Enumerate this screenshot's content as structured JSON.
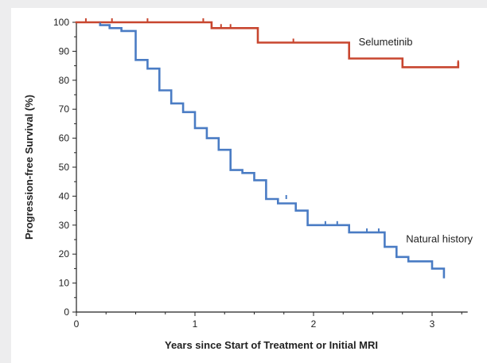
{
  "chart_data": {
    "type": "line",
    "title": "",
    "xlabel": "Years since Start of Treatment or Initial MRI",
    "ylabel": "Progression-free Survival (%)",
    "xlim": [
      0,
      3.3
    ],
    "ylim": [
      0,
      100
    ],
    "xticks": [
      0,
      1,
      2,
      3
    ],
    "yticks": [
      0,
      10,
      20,
      30,
      40,
      50,
      60,
      70,
      80,
      90,
      100
    ],
    "grid": false,
    "legend": "none",
    "series": [
      {
        "name": "Selumetinib",
        "color": "#c8462f",
        "step_points": [
          [
            0,
            100
          ],
          [
            1.14,
            100
          ],
          [
            1.14,
            98
          ],
          [
            1.53,
            98
          ],
          [
            1.53,
            93
          ],
          [
            2.3,
            93
          ],
          [
            2.3,
            87.5
          ],
          [
            2.75,
            87.5
          ],
          [
            2.75,
            84.5
          ],
          [
            3.22,
            84.5
          ],
          [
            3.22,
            86
          ]
        ],
        "censor_marks": [
          [
            0.08,
            100
          ],
          [
            0.3,
            100
          ],
          [
            0.6,
            100
          ],
          [
            1.07,
            100
          ],
          [
            1.22,
            98
          ],
          [
            1.3,
            98
          ],
          [
            1.83,
            93
          ],
          [
            3.22,
            85.5
          ]
        ]
      },
      {
        "name": "Natural history",
        "color": "#4a7cc4",
        "step_points": [
          [
            0.2,
            99.5
          ],
          [
            0.2,
            99
          ],
          [
            0.28,
            99
          ],
          [
            0.28,
            98
          ],
          [
            0.38,
            98
          ],
          [
            0.38,
            97
          ],
          [
            0.5,
            97
          ],
          [
            0.5,
            87
          ],
          [
            0.6,
            87
          ],
          [
            0.6,
            84
          ],
          [
            0.7,
            84
          ],
          [
            0.7,
            76.5
          ],
          [
            0.8,
            76.5
          ],
          [
            0.8,
            72
          ],
          [
            0.9,
            72
          ],
          [
            0.9,
            69
          ],
          [
            1.0,
            69
          ],
          [
            1.0,
            63.5
          ],
          [
            1.1,
            63.5
          ],
          [
            1.1,
            60
          ],
          [
            1.2,
            60
          ],
          [
            1.2,
            56
          ],
          [
            1.3,
            56
          ],
          [
            1.3,
            49
          ],
          [
            1.4,
            49
          ],
          [
            1.4,
            48
          ],
          [
            1.5,
            48
          ],
          [
            1.5,
            45.5
          ],
          [
            1.6,
            45.5
          ],
          [
            1.6,
            39
          ],
          [
            1.7,
            39
          ],
          [
            1.7,
            37.5
          ],
          [
            1.85,
            37.5
          ],
          [
            1.85,
            35
          ],
          [
            1.95,
            35
          ],
          [
            1.95,
            30
          ],
          [
            2.3,
            30
          ],
          [
            2.3,
            27.5
          ],
          [
            2.6,
            27.5
          ],
          [
            2.6,
            22.5
          ],
          [
            2.7,
            22.5
          ],
          [
            2.7,
            19
          ],
          [
            2.8,
            19
          ],
          [
            2.8,
            17.5
          ],
          [
            3.0,
            17.5
          ],
          [
            3.0,
            15
          ],
          [
            3.1,
            15
          ],
          [
            3.1,
            12
          ]
        ],
        "censor_marks": [
          [
            1.77,
            39
          ],
          [
            2.1,
            30
          ],
          [
            2.2,
            30
          ],
          [
            2.45,
            27.5
          ],
          [
            2.55,
            27.5
          ]
        ]
      }
    ],
    "annotations": [
      {
        "text": "Selumetinib",
        "at_data": [
          2.38,
          92
        ]
      },
      {
        "text": "Natural history",
        "at_data": [
          2.78,
          24
        ]
      }
    ]
  }
}
